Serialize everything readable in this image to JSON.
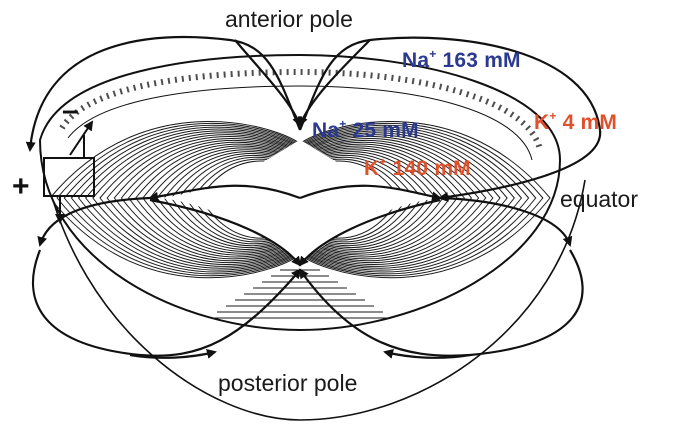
{
  "labels": {
    "anterior_pole": "anterior pole",
    "posterior_pole": "posterior pole",
    "equator": "equator"
  },
  "ions": {
    "na_outside": {
      "symbol": "Na",
      "charge": "+",
      "value": "163 mM"
    },
    "na_inside": {
      "symbol": "Na",
      "charge": "+",
      "value": "25 mM"
    },
    "k_outside": {
      "symbol": "K",
      "charge": "+",
      "value": "4 mM"
    },
    "k_inside": {
      "symbol": "K",
      "charge": "+",
      "value": "140 mM"
    }
  },
  "signs": {
    "minus": "–",
    "plus": "+"
  },
  "colors": {
    "sodium": "#2b3a8f",
    "potassium": "#e0502a",
    "lines": "#111111"
  }
}
